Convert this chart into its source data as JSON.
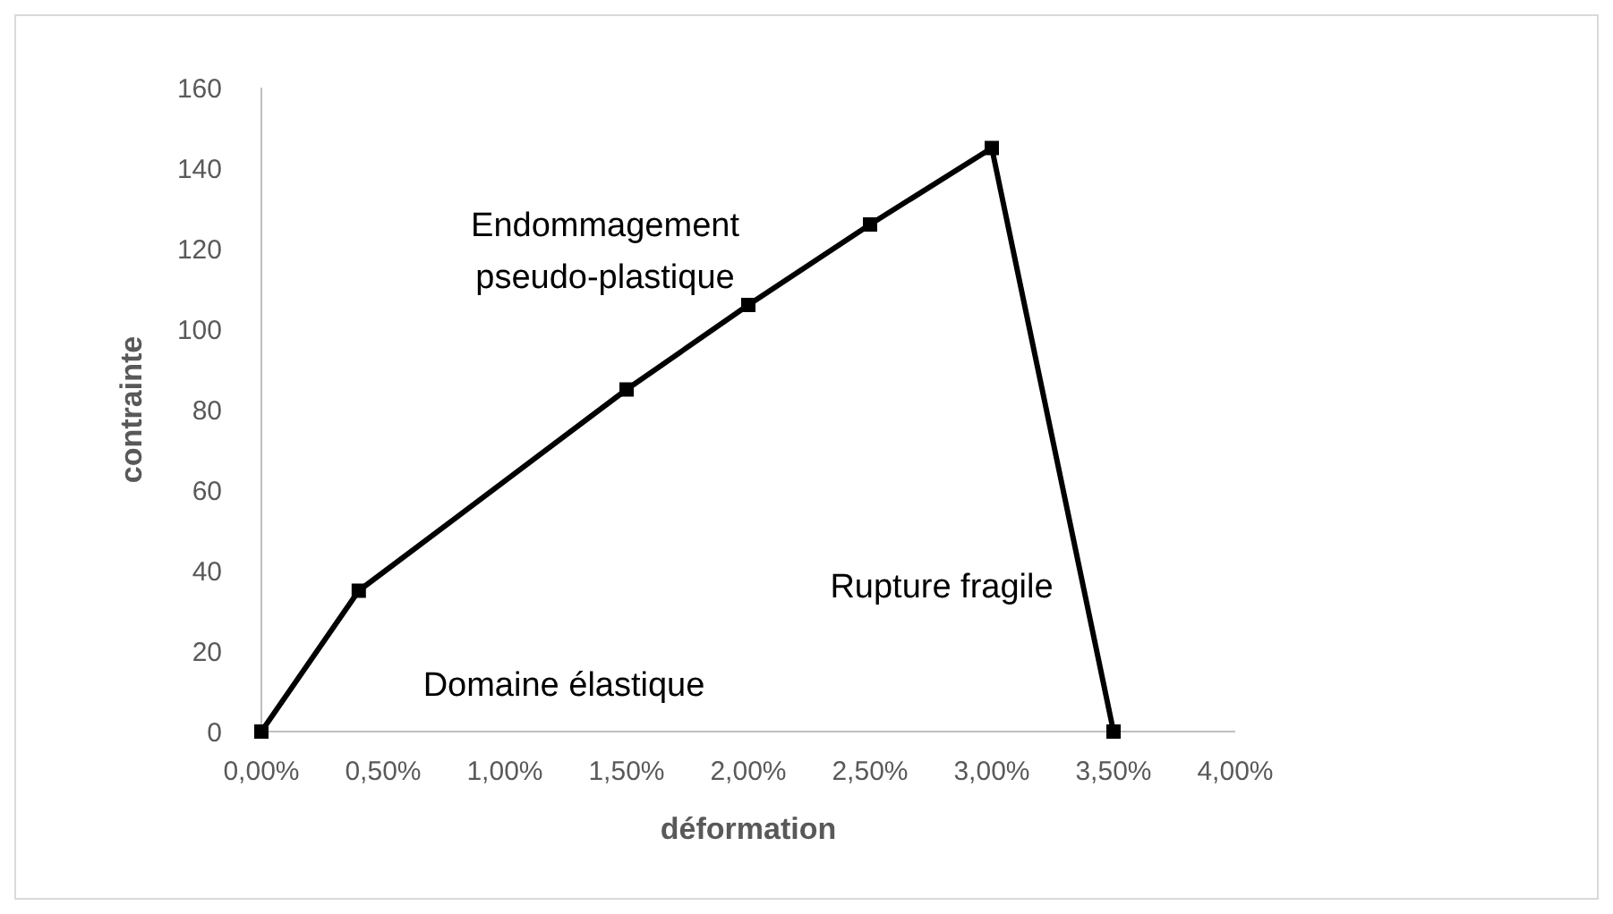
{
  "chart_data": {
    "type": "line",
    "xlabel": "déformation",
    "ylabel": "contrainte",
    "x": [
      0,
      0.4,
      1.5,
      2.0,
      2.5,
      3.0,
      3.5
    ],
    "series": [
      {
        "color": "#000000",
        "values": [
          0,
          35,
          85,
          106,
          126,
          145,
          0
        ]
      }
    ],
    "xlim": [
      0,
      4
    ],
    "xticks": [
      {
        "value": 0,
        "label": "0,00%"
      },
      {
        "value": 0.5,
        "label": "0,50%"
      },
      {
        "value": 1,
        "label": "1,00%"
      },
      {
        "value": 1.5,
        "label": "1,50%"
      },
      {
        "value": 2,
        "label": "2,00%"
      },
      {
        "value": 2.5,
        "label": "2,50%"
      },
      {
        "value": 3,
        "label": "3,00%"
      },
      {
        "value": 3.5,
        "label": "3,50%"
      },
      {
        "value": 4,
        "label": "4,00%"
      }
    ],
    "ylim": [
      0,
      160
    ],
    "yticks": [
      0,
      20,
      40,
      60,
      80,
      100,
      120,
      140,
      160
    ],
    "marker": "square",
    "line_style": "solid",
    "annotations": [
      "Endommagement\npseudo-plastique",
      "Rupture fragile",
      "Domaine élastique"
    ]
  }
}
